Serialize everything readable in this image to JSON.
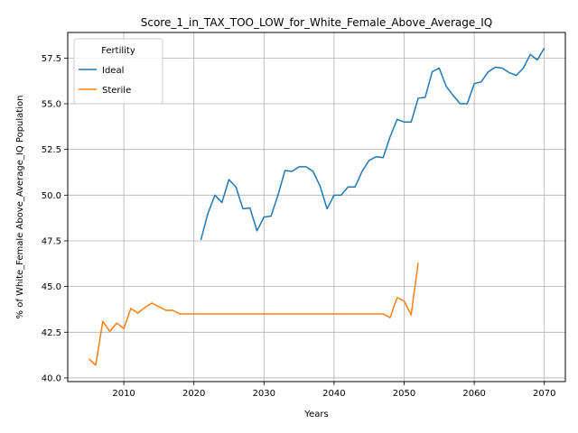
{
  "chart_data": {
    "type": "line",
    "title": "Score_1_in_TAX_TOO_LOW_for_White_Female_Above_Average_IQ",
    "xlabel": "Years",
    "ylabel": "% of White_Female Above_Average_IQ Population",
    "xlim": [
      2002,
      2073
    ],
    "ylim": [
      39.8,
      58.9
    ],
    "xticks": [
      2010,
      2020,
      2030,
      2040,
      2050,
      2060,
      2070
    ],
    "xtick_labels": [
      "2010",
      "2020",
      "2030",
      "2040",
      "2050",
      "2060",
      "2070"
    ],
    "yticks": [
      40.0,
      42.5,
      45.0,
      47.5,
      50.0,
      52.5,
      55.0,
      57.5
    ],
    "ytick_labels": [
      "40.0",
      "42.5",
      "45.0",
      "47.5",
      "50.0",
      "52.5",
      "55.0",
      "57.5"
    ],
    "grid": true,
    "legend": {
      "title": "Fertility",
      "placement": "top-left"
    },
    "series": [
      {
        "name": "Ideal",
        "color": "#1f77b4",
        "points": [
          [
            2021,
            47.55
          ],
          [
            2022,
            49.0
          ],
          [
            2023,
            50.0
          ],
          [
            2024,
            49.6
          ],
          [
            2025,
            50.85
          ],
          [
            2026,
            50.45
          ],
          [
            2027,
            49.25
          ],
          [
            2028,
            49.3
          ],
          [
            2029,
            48.05
          ],
          [
            2030,
            48.8
          ],
          [
            2031,
            48.85
          ],
          [
            2032,
            50.0
          ],
          [
            2033,
            51.35
          ],
          [
            2034,
            51.3
          ],
          [
            2035,
            51.55
          ],
          [
            2036,
            51.55
          ],
          [
            2037,
            51.3
          ],
          [
            2038,
            50.5
          ],
          [
            2039,
            49.25
          ],
          [
            2040,
            50.0
          ],
          [
            2041,
            50.0
          ],
          [
            2042,
            50.45
          ],
          [
            2043,
            50.45
          ],
          [
            2044,
            51.3
          ],
          [
            2045,
            51.9
          ],
          [
            2046,
            52.1
          ],
          [
            2047,
            52.05
          ],
          [
            2048,
            53.2
          ],
          [
            2049,
            54.15
          ],
          [
            2050,
            54.0
          ],
          [
            2051,
            54.0
          ],
          [
            2052,
            55.3
          ],
          [
            2053,
            55.35
          ],
          [
            2054,
            56.75
          ],
          [
            2055,
            56.95
          ],
          [
            2056,
            55.95
          ],
          [
            2057,
            55.45
          ],
          [
            2058,
            55.0
          ],
          [
            2059,
            55.0
          ],
          [
            2060,
            56.1
          ],
          [
            2061,
            56.2
          ],
          [
            2062,
            56.75
          ],
          [
            2063,
            57.0
          ],
          [
            2064,
            56.95
          ],
          [
            2065,
            56.7
          ],
          [
            2066,
            56.55
          ],
          [
            2067,
            56.95
          ],
          [
            2068,
            57.7
          ],
          [
            2069,
            57.4
          ],
          [
            2070,
            58.05
          ]
        ]
      },
      {
        "name": "Sterile",
        "color": "#ff7f0e",
        "points": [
          [
            2005,
            41.05
          ],
          [
            2006,
            40.7
          ],
          [
            2007,
            43.1
          ],
          [
            2008,
            42.55
          ],
          [
            2009,
            43.0
          ],
          [
            2010,
            42.7
          ],
          [
            2011,
            43.8
          ],
          [
            2012,
            43.55
          ],
          [
            2013,
            43.85
          ],
          [
            2014,
            44.1
          ],
          [
            2015,
            43.9
          ],
          [
            2016,
            43.7
          ],
          [
            2017,
            43.7
          ],
          [
            2018,
            43.5
          ],
          [
            2019,
            43.5
          ],
          [
            2020,
            43.5
          ],
          [
            2021,
            43.5
          ],
          [
            2022,
            43.5
          ],
          [
            2023,
            43.5
          ],
          [
            2024,
            43.5
          ],
          [
            2025,
            43.5
          ],
          [
            2026,
            43.5
          ],
          [
            2027,
            43.5
          ],
          [
            2028,
            43.5
          ],
          [
            2029,
            43.5
          ],
          [
            2030,
            43.5
          ],
          [
            2031,
            43.5
          ],
          [
            2032,
            43.5
          ],
          [
            2033,
            43.5
          ],
          [
            2034,
            43.5
          ],
          [
            2035,
            43.5
          ],
          [
            2036,
            43.5
          ],
          [
            2037,
            43.5
          ],
          [
            2038,
            43.5
          ],
          [
            2039,
            43.5
          ],
          [
            2040,
            43.5
          ],
          [
            2041,
            43.5
          ],
          [
            2042,
            43.5
          ],
          [
            2043,
            43.5
          ],
          [
            2044,
            43.5
          ],
          [
            2045,
            43.5
          ],
          [
            2046,
            43.5
          ],
          [
            2047,
            43.5
          ],
          [
            2048,
            43.3
          ],
          [
            2049,
            44.4
          ],
          [
            2050,
            44.2
          ],
          [
            2051,
            43.45
          ],
          [
            2052,
            46.3
          ]
        ]
      }
    ]
  }
}
